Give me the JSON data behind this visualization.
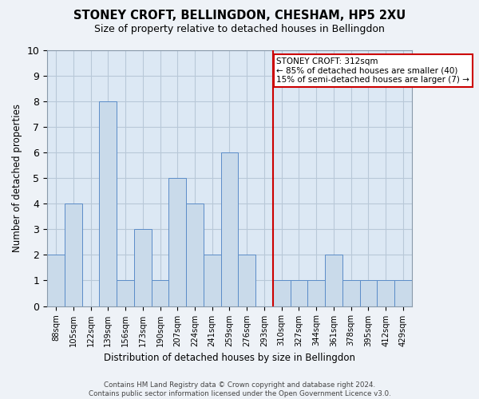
{
  "title": "STONEY CROFT, BELLINGDON, CHESHAM, HP5 2XU",
  "subtitle": "Size of property relative to detached houses in Bellingdon",
  "xlabel": "Distribution of detached houses by size in Bellingdon",
  "ylabel": "Number of detached properties",
  "categories": [
    "88sqm",
    "105sqm",
    "122sqm",
    "139sqm",
    "156sqm",
    "173sqm",
    "190sqm",
    "207sqm",
    "224sqm",
    "241sqm",
    "259sqm",
    "276sqm",
    "293sqm",
    "310sqm",
    "327sqm",
    "344sqm",
    "361sqm",
    "378sqm",
    "395sqm",
    "412sqm",
    "429sqm"
  ],
  "values": [
    2,
    4,
    0,
    8,
    1,
    3,
    1,
    5,
    4,
    2,
    6,
    2,
    0,
    1,
    1,
    1,
    2,
    1,
    1,
    1,
    1
  ],
  "bar_color": "#c9daea",
  "bar_edge_color": "#5b8cc8",
  "ylim": [
    0,
    10
  ],
  "yticks": [
    0,
    1,
    2,
    3,
    4,
    5,
    6,
    7,
    8,
    9,
    10
  ],
  "vline_x": 12.5,
  "vline_color": "#cc0000",
  "annotation_text": "STONEY CROFT: 312sqm\n← 85% of detached houses are smaller (40)\n15% of semi-detached houses are larger (7) →",
  "annotation_box_color": "#cc0000",
  "footer": "Contains HM Land Registry data © Crown copyright and database right 2024.\nContains public sector information licensed under the Open Government Licence v3.0.",
  "bg_color": "#eef2f7",
  "plot_bg_color": "#dce8f4",
  "grid_color": "#b8c8d8",
  "title_fontsize": 10.5,
  "subtitle_fontsize": 9
}
